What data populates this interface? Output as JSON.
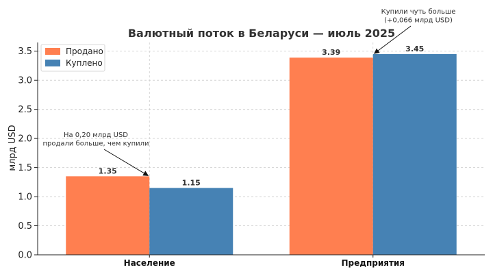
{
  "chart_data": {
    "type": "bar",
    "title": "Валютный поток в Беларуси — июль 2025",
    "xlabel": "",
    "ylabel": "млрд USD",
    "ylim": [
      0,
      3.65
    ],
    "yticks": [
      "0.0",
      "0.5",
      "1.0",
      "1.5",
      "2.0",
      "2.5",
      "3.0",
      "3.5"
    ],
    "categories": [
      "Население",
      "Предприятия"
    ],
    "series": [
      {
        "name": "Продано",
        "color": "#ff7f50",
        "values": [
          1.35,
          3.39
        ],
        "labels": [
          "1.35",
          "3.39"
        ]
      },
      {
        "name": "Куплено",
        "color": "#4682b4",
        "values": [
          1.15,
          3.45
        ],
        "labels": [
          "1.15",
          "3.45"
        ]
      }
    ],
    "grid": true,
    "legend": "top-left",
    "annotations": [
      {
        "lines": [
          "На 0,20 млрд USD",
          "продали больше, чем купили"
        ],
        "category": 0,
        "series": 0
      },
      {
        "lines": [
          "Купили чуть больше",
          "(+0,066 млрд USD)"
        ],
        "category": 1,
        "series": 1
      }
    ]
  }
}
